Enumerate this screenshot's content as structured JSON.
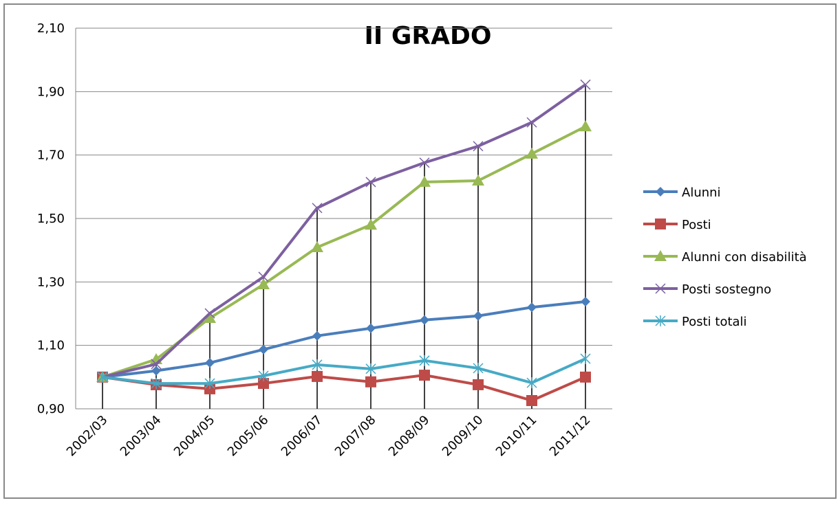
{
  "chart_data": {
    "type": "line",
    "title": "II GRADO",
    "categories": [
      "2002/03",
      "2003/04",
      "2004/05",
      "2005/06",
      "2006/07",
      "2007/08",
      "2008/09",
      "2009/10",
      "2010/11",
      "2011/12"
    ],
    "series": [
      {
        "name": "Alunni",
        "color": "#4a7ebb",
        "marker": "diamond",
        "values": [
          1.0,
          1.02,
          1.045,
          1.087,
          1.13,
          1.154,
          1.18,
          1.193,
          1.22,
          1.238
        ]
      },
      {
        "name": "Posti",
        "color": "#be4b48",
        "marker": "square",
        "values": [
          1.0,
          0.976,
          0.963,
          0.98,
          1.002,
          0.985,
          1.006,
          0.976,
          0.926,
          1.0
        ]
      },
      {
        "name": "Alunni con disabilità",
        "color": "#98b954",
        "marker": "triangle",
        "values": [
          1.0,
          1.056,
          1.186,
          1.292,
          1.409,
          1.48,
          1.615,
          1.619,
          1.704,
          1.79
        ]
      },
      {
        "name": "Posti sostegno",
        "color": "#7d60a0",
        "marker": "x",
        "values": [
          1.0,
          1.041,
          1.201,
          1.316,
          1.533,
          1.615,
          1.676,
          1.728,
          1.803,
          1.922
        ]
      },
      {
        "name": "Posti totali",
        "color": "#46aac5",
        "marker": "star",
        "values": [
          1.0,
          0.98,
          0.98,
          1.004,
          1.039,
          1.026,
          1.052,
          1.028,
          0.982,
          1.058
        ]
      }
    ],
    "ylim": [
      0.9,
      2.1
    ],
    "yticks": [
      {
        "value": 0.9,
        "label": "0,90"
      },
      {
        "value": 1.1,
        "label": "1,10"
      },
      {
        "value": 1.3,
        "label": "1,30"
      },
      {
        "value": 1.5,
        "label": "1,50"
      },
      {
        "value": 1.7,
        "label": "1,70"
      },
      {
        "value": 1.9,
        "label": "1,90"
      },
      {
        "value": 2.1,
        "label": "2,10"
      }
    ],
    "grid": true,
    "drop_lines": true,
    "legend": "right"
  }
}
